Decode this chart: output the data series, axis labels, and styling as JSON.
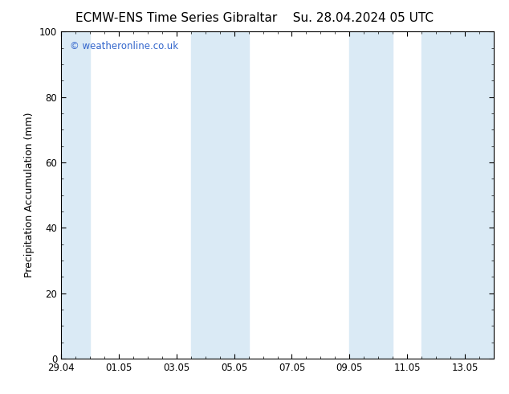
{
  "title_left": "ECMW-ENS Time Series Gibraltar",
  "title_right": "Su. 28.04.2024 05 UTC",
  "ylabel": "Precipitation Accumulation (mm)",
  "ylim": [
    0,
    100
  ],
  "yticks": [
    0,
    20,
    40,
    60,
    80,
    100
  ],
  "xtick_labels": [
    "29.04",
    "01.05",
    "03.05",
    "05.05",
    "07.05",
    "09.05",
    "11.05",
    "13.05"
  ],
  "xtick_positions": [
    0,
    2,
    4,
    6,
    8,
    10,
    12,
    14
  ],
  "xlim": [
    0,
    15
  ],
  "shaded_band_color": "#daeaf5",
  "shaded_spans": [
    [
      0.0,
      1.0
    ],
    [
      4.5,
      6.5
    ],
    [
      10.0,
      11.5
    ],
    [
      12.5,
      15.0
    ]
  ],
  "watermark_text": "© weatheronline.co.uk",
  "watermark_color": "#3366cc",
  "background_color": "#ffffff",
  "plot_bg_color": "#ffffff",
  "tick_color": "#000000",
  "label_color": "#000000",
  "title_fontsize": 11,
  "label_fontsize": 9,
  "tick_fontsize": 8.5,
  "watermark_fontsize": 8.5
}
